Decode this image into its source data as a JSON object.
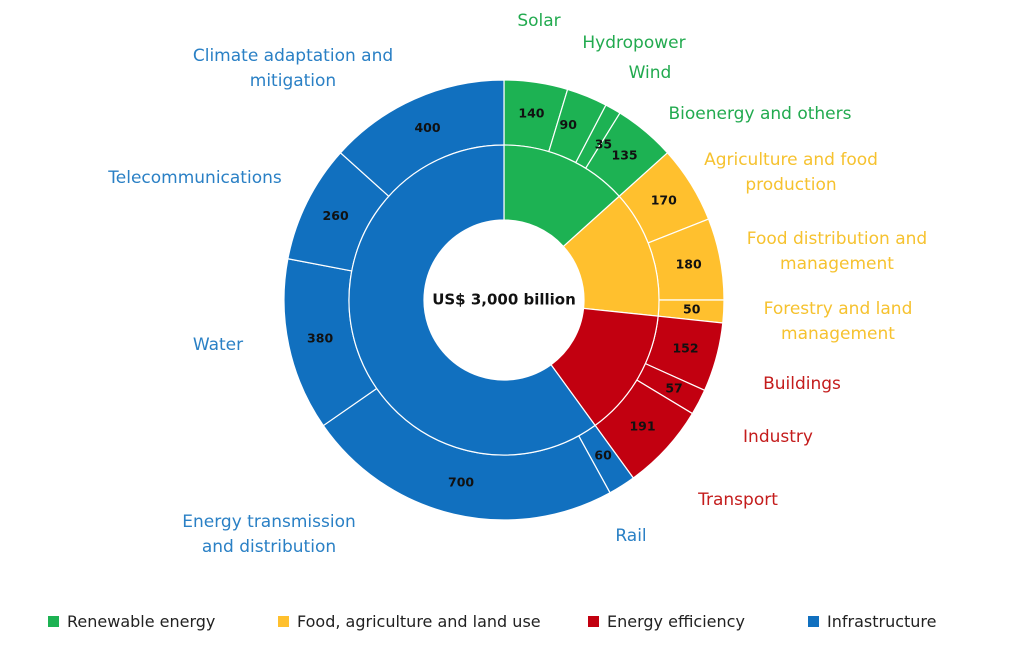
{
  "chart_data": {
    "type": "donut",
    "center_label": "US$ 3,000 billion",
    "legend_position": "bottom",
    "colors": {
      "Renewable energy": "#1db253",
      "Food, agriculture and land use": "#ffc02e",
      "Energy efficiency": "#c20010",
      "Infrastructure": "#1170bf"
    },
    "label_colors": {
      "Renewable energy": "#22aa4f",
      "Food, agriculture and land use": "#f6c22f",
      "Energy efficiency": "#c41c1c",
      "Infrastructure": "#2a80c5"
    },
    "inner_ring": [
      {
        "category": "Renewable energy",
        "value": 400
      },
      {
        "category": "Food, agriculture and land use",
        "value": 400
      },
      {
        "category": "Energy efficiency",
        "value": 400
      },
      {
        "category": "Infrastructure",
        "value": 1800
      }
    ],
    "outer_ring": [
      {
        "category": "Renewable energy",
        "label": "Solar",
        "value": 140
      },
      {
        "category": "Renewable energy",
        "label": "Hydropower",
        "value": 90
      },
      {
        "category": "Renewable energy",
        "label": "Wind",
        "value": 35
      },
      {
        "category": "Renewable energy",
        "label": "Bioenergy and others",
        "value": 135
      },
      {
        "category": "Food, agriculture and land use",
        "label": "Agriculture and food production",
        "value": 170
      },
      {
        "category": "Food, agriculture and land use",
        "label": "Food distribution and management",
        "value": 180
      },
      {
        "category": "Food, agriculture and land use",
        "label": "Forestry and land management",
        "value": 50
      },
      {
        "category": "Energy efficiency",
        "label": "Buildings",
        "value": 152
      },
      {
        "category": "Energy efficiency",
        "label": "Industry",
        "value": 57
      },
      {
        "category": "Energy efficiency",
        "label": "Transport",
        "value": 191
      },
      {
        "category": "Infrastructure",
        "label": "Rail",
        "value": 60
      },
      {
        "category": "Infrastructure",
        "label": "Energy transmission and distribution",
        "value": 700
      },
      {
        "category": "Infrastructure",
        "label": "Water",
        "value": 380
      },
      {
        "category": "Infrastructure",
        "label": "Telecommunications",
        "value": 260
      },
      {
        "category": "Infrastructure",
        "label": "Climate adaptation and mitigation",
        "value": 400
      }
    ],
    "legend": [
      "Renewable energy",
      "Food, agriculture and land use",
      "Energy efficiency",
      "Infrastructure"
    ]
  }
}
